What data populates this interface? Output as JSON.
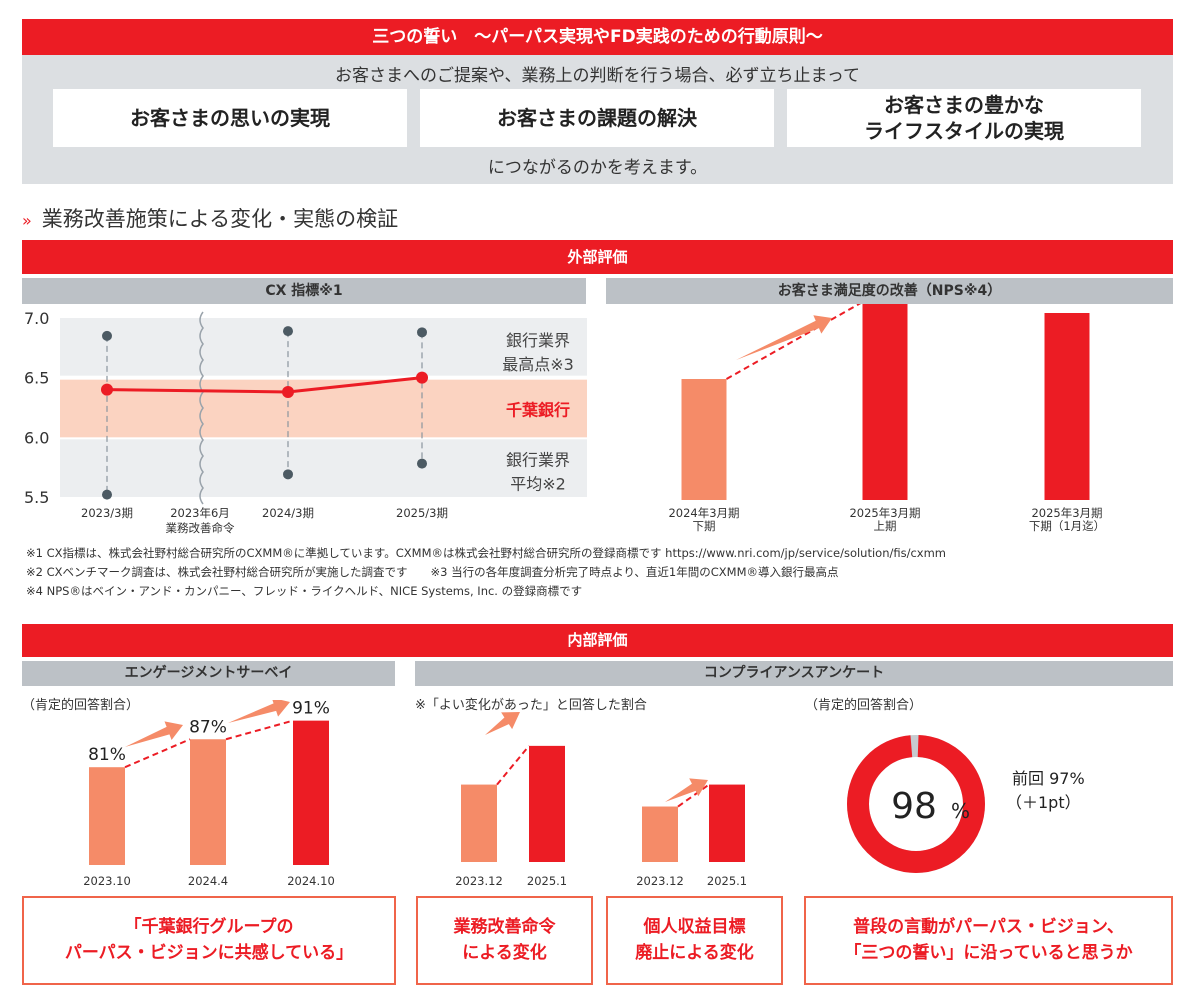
{
  "pledge": {
    "title": "三つの誓い　～パーパス実現やFD実践のための行動原則～",
    "lead": "お客さまへのご提案や、業務上の判断を行う場合、必ず立ち止まって",
    "cards": [
      "お客さまの思いの実現",
      "お客さまの課題の解決",
      "お客さまの豊かな\nライフスタイルの実現"
    ],
    "tail": "につながるのかを考えます。"
  },
  "section": {
    "mark": "»",
    "title": "業務改善施策による変化・実態の検証"
  },
  "external": {
    "banner": "外部評価",
    "cx_header": "CX 指標※1",
    "nps_header": "お客さま満足度の改善（NPS※4）"
  },
  "footnotes": [
    "※1 CX指標は、株式会社野村総合研究所のCXMM®に準拠しています。CXMM®は株式会社野村総合研究所の登録商標です https://www.nri.com/jp/service/solution/fis/cxmm",
    "※2 CXベンチマーク調査は、株式会社野村総合研究所が実施した調査です　　※3 当行の各年度調査分析完了時点より、直近1年間のCXMM®導入銀行最高点",
    "※4 NPS®はベイン・アンド・カンパニー、フレッド・ライクヘルド、NICE Systems, Inc. の登録商標です"
  ],
  "internal": {
    "banner": "内部評価",
    "engagement_header": "エンゲージメントサーベイ",
    "compliance_header": "コンプライアンスアンケート",
    "engagement_note": "（肯定的回答割合）",
    "compliance_note": "※「よい変化があった」と回答した割合",
    "donut_note": "（肯定的回答割合）",
    "boxes": [
      "「千葉銀行グループの\nパーパス・ビジョンに共感している」",
      "業務改善命令\nによる変化",
      "個人収益目標\n廃止による変化",
      "普段の言動がパーパス・ビジョン、\n「三つの誓い」に沿っていると思うか"
    ]
  },
  "colors": {
    "red": "#ec1c24",
    "salmon": "#f58b68",
    "gray_band": "#eceef0",
    "peach_band": "#fbd3c1",
    "dot": "#4c5a63"
  },
  "chart_data": [
    {
      "type": "line",
      "title": "CX 指標※1",
      "categories": [
        "2023/3期",
        "2024/3期",
        "2025/3期"
      ],
      "event_marker": {
        "label": "2023年6月\n業務改善命令",
        "position_between": [
          "2023/3期",
          "2024/3期"
        ]
      },
      "series": [
        {
          "name": "千葉銀行",
          "values": [
            6.4,
            6.38,
            6.5
          ]
        },
        {
          "name": "銀行業界最高点※3",
          "values": [
            6.85,
            6.89,
            6.88
          ]
        },
        {
          "name": "銀行業界平均※2",
          "values": [
            5.52,
            5.69,
            5.78
          ]
        }
      ],
      "bands": [
        {
          "label": "銀行業界\n最高点※3",
          "range": [
            6.5,
            7.0
          ]
        },
        {
          "label": "千葉銀行",
          "range": [
            6.0,
            6.5
          ]
        },
        {
          "label": "銀行業界\n平均※2",
          "range": [
            5.5,
            6.0
          ]
        }
      ],
      "yticks": [
        "7.0",
        "6.5",
        "6.0",
        "5.5"
      ],
      "ylim": [
        5.5,
        7.0
      ],
      "xlabel": "",
      "ylabel": "",
      "grid": false
    },
    {
      "type": "bar",
      "title": "お客さま満足度の改善（NPS※4）",
      "categories": [
        "2024年3月期\n下期",
        "2025年3月期\n上期",
        "2025年3月期\n下期（1月迄）"
      ],
      "values": [
        0.55,
        0.9,
        0.85
      ],
      "value_unit": "relative (unlabeled)",
      "ylim": [
        0,
        1
      ]
    },
    {
      "type": "bar",
      "title": "エンゲージメントサーベイ（肯定的回答割合）",
      "categories": [
        "2023.10",
        "2024.4",
        "2024.10"
      ],
      "values": [
        81,
        87,
        91
      ],
      "labels": [
        "81%",
        "87%",
        "91%"
      ],
      "ylim": [
        60,
        95
      ]
    },
    {
      "type": "bar",
      "title": "業務改善命令による変化",
      "categories": [
        "2023.12",
        "2025.1"
      ],
      "values": [
        0.6,
        0.9
      ],
      "value_unit": "relative (unlabeled)"
    },
    {
      "type": "bar",
      "title": "個人収益目標廃止による変化",
      "categories": [
        "2023.12",
        "2025.1"
      ],
      "values": [
        0.43,
        0.6
      ],
      "value_unit": "relative (unlabeled)"
    },
    {
      "type": "pie",
      "title": "普段の言動がパーパス・ビジョン、「三つの誓い」に沿っていると思うか",
      "values": [
        98,
        2
      ],
      "center_value": "98",
      "center_unit": "%",
      "previous": "前回 97%",
      "delta": "（＋1pt）"
    }
  ]
}
